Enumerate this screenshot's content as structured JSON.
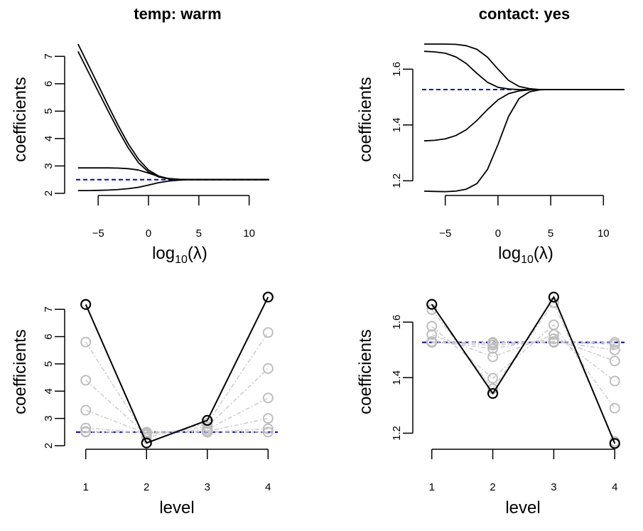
{
  "chart_data": [
    {
      "id": "p1",
      "type": "line",
      "title": "temp: warm",
      "xlabel_base": "log",
      "xlabel_sub": "10",
      "xlabel_arg": "(λ)",
      "ylabel": "coefficients",
      "xticks": [
        "−5",
        "0",
        "5",
        "10"
      ],
      "xtick_values": [
        -5,
        0,
        5,
        10
      ],
      "yticks": [
        "2",
        "3",
        "4",
        "5",
        "6",
        "7"
      ],
      "ytick_values": [
        2,
        3,
        4,
        5,
        6,
        7
      ],
      "xlim": [
        -7.2,
        12
      ],
      "ylim": [
        2.0,
        7.5
      ],
      "reference_line": 2.5,
      "x": [
        -7,
        -6,
        -5,
        -4,
        -3,
        -2,
        -1,
        0,
        1,
        2,
        3,
        4,
        5,
        6,
        8,
        10,
        12
      ],
      "series": [
        {
          "values": [
            7.45,
            6.7,
            5.95,
            5.2,
            4.47,
            3.8,
            3.25,
            2.85,
            2.63,
            2.54,
            2.51,
            2.5,
            2.5,
            2.5,
            2.5,
            2.5,
            2.5
          ]
        },
        {
          "values": [
            7.18,
            6.45,
            5.72,
            5.0,
            4.3,
            3.65,
            3.12,
            2.78,
            2.6,
            2.53,
            2.51,
            2.5,
            2.5,
            2.5,
            2.5,
            2.5,
            2.5
          ]
        },
        {
          "values": [
            2.93,
            2.93,
            2.93,
            2.93,
            2.92,
            2.9,
            2.85,
            2.74,
            2.62,
            2.54,
            2.51,
            2.5,
            2.5,
            2.5,
            2.5,
            2.5,
            2.5
          ]
        },
        {
          "values": [
            2.1,
            2.1,
            2.11,
            2.12,
            2.14,
            2.17,
            2.22,
            2.3,
            2.39,
            2.45,
            2.48,
            2.5,
            2.5,
            2.5,
            2.5,
            2.5,
            2.5
          ]
        }
      ]
    },
    {
      "id": "p2",
      "type": "line",
      "title": "contact: yes",
      "xlabel_base": "log",
      "xlabel_sub": "10",
      "xlabel_arg": "(λ)",
      "ylabel": "coefficients",
      "xticks": [
        "−5",
        "0",
        "5",
        "10"
      ],
      "xtick_values": [
        -5,
        0,
        5,
        10
      ],
      "yticks": [
        "1.2",
        "1.4",
        "1.6"
      ],
      "ytick_values": [
        1.2,
        1.4,
        1.6
      ],
      "xlim": [
        -7.2,
        12
      ],
      "ylim": [
        1.155,
        1.695
      ],
      "reference_line": 1.527,
      "x": [
        -7,
        -6,
        -5,
        -4,
        -3,
        -2,
        -1,
        0,
        1,
        2,
        3,
        4,
        5,
        6,
        8,
        10,
        12
      ],
      "series": [
        {
          "values": [
            1.69,
            1.69,
            1.69,
            1.689,
            1.684,
            1.671,
            1.643,
            1.6,
            1.56,
            1.538,
            1.53,
            1.527,
            1.527,
            1.527,
            1.527,
            1.527,
            1.527
          ]
        },
        {
          "values": [
            1.664,
            1.662,
            1.657,
            1.644,
            1.62,
            1.585,
            1.553,
            1.535,
            1.529,
            1.527,
            1.527,
            1.527,
            1.527,
            1.527,
            1.527,
            1.527,
            1.527
          ]
        },
        {
          "values": [
            1.343,
            1.345,
            1.35,
            1.362,
            1.383,
            1.416,
            1.455,
            1.49,
            1.512,
            1.522,
            1.526,
            1.527,
            1.527,
            1.527,
            1.527,
            1.527,
            1.527
          ]
        },
        {
          "values": [
            1.163,
            1.162,
            1.161,
            1.163,
            1.17,
            1.19,
            1.24,
            1.33,
            1.43,
            1.495,
            1.519,
            1.526,
            1.527,
            1.527,
            1.527,
            1.527,
            1.527
          ]
        }
      ]
    },
    {
      "id": "p3",
      "type": "scatter",
      "title": "",
      "xlabel": "level",
      "ylabel": "coefficients",
      "xticks": [
        "1",
        "2",
        "3",
        "4"
      ],
      "xtick_values": [
        1,
        2,
        3,
        4
      ],
      "yticks": [
        "2",
        "3",
        "4",
        "5",
        "6",
        "7"
      ],
      "ytick_values": [
        2,
        3,
        4,
        5,
        6,
        7
      ],
      "xlim": [
        0.84,
        4.16
      ],
      "ylim": [
        2.0,
        7.5
      ],
      "reference_line": 2.5,
      "levels": [
        1,
        2,
        3,
        4
      ],
      "profiles_grey": [
        [
          5.8,
          2.3,
          2.82,
          6.15
        ],
        [
          4.4,
          2.4,
          2.7,
          4.83
        ],
        [
          3.3,
          2.45,
          2.6,
          3.75
        ],
        [
          2.65,
          2.48,
          2.53,
          3.0
        ],
        [
          2.52,
          2.5,
          2.5,
          2.62
        ],
        [
          2.5,
          2.5,
          2.5,
          2.5
        ]
      ],
      "profile_black": [
        7.18,
        2.1,
        2.93,
        7.45
      ]
    },
    {
      "id": "p4",
      "type": "scatter",
      "title": "",
      "xlabel": "level",
      "ylabel": "coefficients",
      "xticks": [
        "1",
        "2",
        "3",
        "4"
      ],
      "xtick_values": [
        1,
        2,
        3,
        4
      ],
      "yticks": [
        "1.2",
        "1.4",
        "1.6"
      ],
      "ytick_values": [
        1.2,
        1.4,
        1.6
      ],
      "xlim": [
        0.84,
        4.16
      ],
      "ylim": [
        1.155,
        1.695
      ],
      "reference_line": 1.527,
      "levels": [
        1,
        2,
        3,
        4
      ],
      "profiles_grey": [
        [
          1.645,
          1.36,
          1.67,
          1.17
        ],
        [
          1.585,
          1.398,
          1.59,
          1.29
        ],
        [
          1.555,
          1.475,
          1.555,
          1.388
        ],
        [
          1.53,
          1.505,
          1.54,
          1.46
        ],
        [
          1.527,
          1.517,
          1.53,
          1.5
        ],
        [
          1.527,
          1.524,
          1.528,
          1.52
        ],
        [
          1.527,
          1.527,
          1.527,
          1.527
        ]
      ],
      "profile_black": [
        1.664,
        1.343,
        1.69,
        1.163
      ]
    }
  ],
  "colors": {
    "axis": "#000000",
    "series": "#000000",
    "reference_line": "#0000cd",
    "grey_points": "#bebebe",
    "grey_lines": "#c4c4c4"
  }
}
